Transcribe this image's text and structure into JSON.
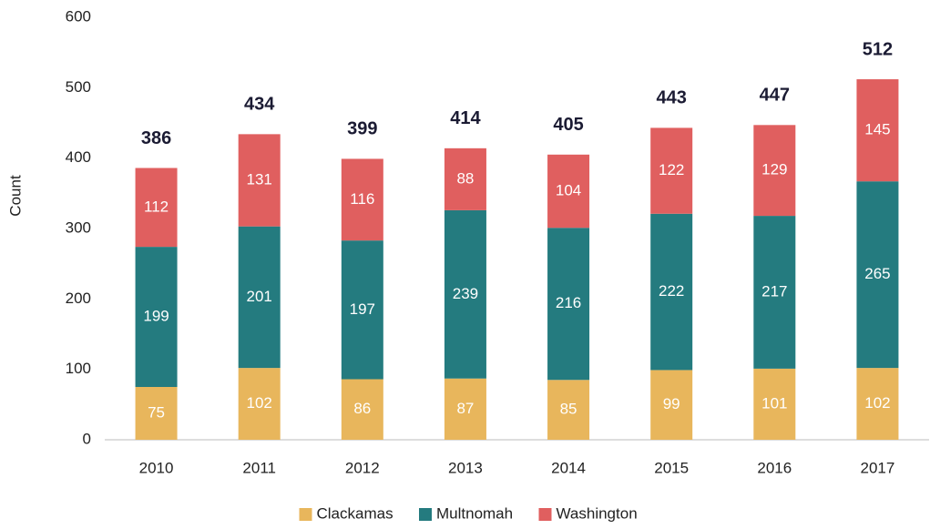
{
  "chart_data": {
    "type": "stacked_bar",
    "y_label": "Count",
    "categories": [
      "2010",
      "2011",
      "2012",
      "2013",
      "2014",
      "2015",
      "2016",
      "2017"
    ],
    "series": [
      {
        "name": "Clackamas",
        "color": "#e8b65c",
        "values": [
          75,
          102,
          86,
          87,
          85,
          99,
          101,
          102
        ]
      },
      {
        "name": "Multnomah",
        "color": "#247b7f",
        "values": [
          199,
          201,
          197,
          239,
          216,
          222,
          217,
          265
        ]
      },
      {
        "name": "Washington",
        "color": "#e05f5f",
        "values": [
          112,
          131,
          116,
          88,
          104,
          122,
          129,
          145
        ]
      }
    ],
    "totals": [
      386,
      434,
      399,
      414,
      405,
      443,
      447,
      512
    ],
    "ylim": [
      0,
      600
    ],
    "yticks": [
      0,
      100,
      200,
      300,
      400,
      500,
      600
    ],
    "grid": false,
    "legend": "bottom"
  }
}
